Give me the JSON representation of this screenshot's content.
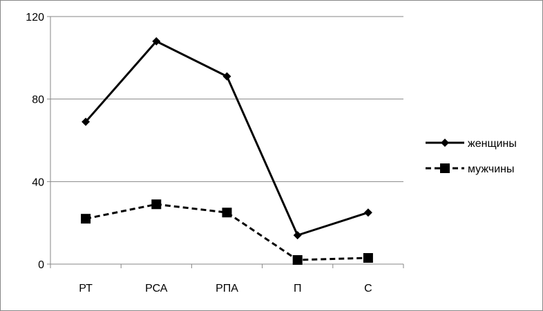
{
  "chart_data": {
    "type": "line",
    "title": "",
    "xlabel": "",
    "ylabel": "",
    "categories": [
      "РТ",
      "РСА",
      "РПА",
      "П",
      "С"
    ],
    "ylim": [
      0,
      120
    ],
    "yticks": [
      0,
      40,
      80,
      120
    ],
    "grid": true,
    "legend_position": "right",
    "series": [
      {
        "name": "женщины",
        "values": [
          69,
          108,
          91,
          14,
          25
        ],
        "marker": "diamond",
        "line_style": "solid",
        "color": "#000000"
      },
      {
        "name": "мужчины",
        "values": [
          22,
          29,
          25,
          2,
          3
        ],
        "marker": "square",
        "line_style": "dashed",
        "color": "#000000"
      }
    ]
  }
}
